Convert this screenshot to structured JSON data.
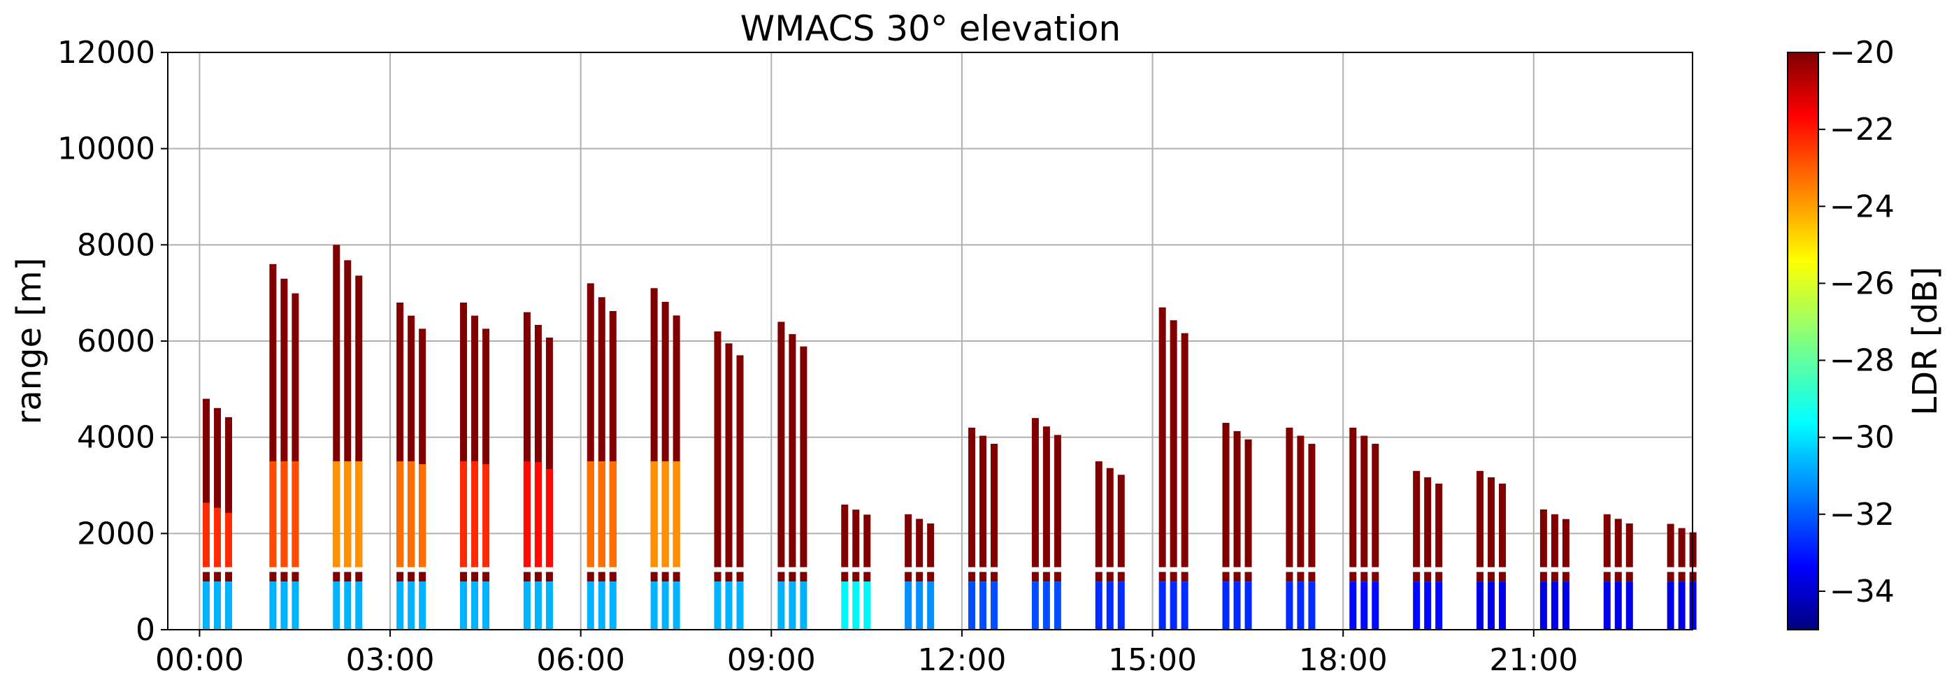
{
  "chart_data": {
    "type": "heatmap",
    "title": "WMACS 30° elevation",
    "ylabel": "range [m]",
    "xlabel": "",
    "x_ticks": [
      "00:00",
      "03:00",
      "06:00",
      "09:00",
      "12:00",
      "15:00",
      "18:00",
      "21:00"
    ],
    "x_tick_hours": [
      0,
      3,
      6,
      9,
      12,
      15,
      18,
      21
    ],
    "xlim_hours": [
      -0.5,
      23.5
    ],
    "y_ticks": [
      "0",
      "2000",
      "4000",
      "6000",
      "8000",
      "10000",
      "12000"
    ],
    "ylim": [
      0,
      12000
    ],
    "grid": true,
    "colorbar": {
      "label": "LDR [dB]",
      "range": [
        -35,
        -20
      ],
      "ticks": [
        "−20",
        "−22",
        "−24",
        "−26",
        "−28",
        "−30",
        "−32",
        "−34"
      ],
      "colormap": "jet"
    },
    "scans": [
      {
        "start_hour": 0.05,
        "top": 4800,
        "low_ldr": -30.5,
        "mid_ldr": -22.5
      },
      {
        "start_hour": 1.1,
        "top": 7600,
        "low_ldr": -30.5,
        "mid_ldr": -23
      },
      {
        "start_hour": 2.1,
        "top": 8000,
        "low_ldr": -30.5,
        "mid_ldr": -24
      },
      {
        "start_hour": 3.1,
        "top": 6800,
        "low_ldr": -30.5,
        "mid_ldr": -23.5
      },
      {
        "start_hour": 4.1,
        "top": 6800,
        "low_ldr": -30.5,
        "mid_ldr": -22.5
      },
      {
        "start_hour": 5.1,
        "top": 6600,
        "low_ldr": -30.5,
        "mid_ldr": -22
      },
      {
        "start_hour": 6.1,
        "top": 7200,
        "low_ldr": -30.5,
        "mid_ldr": -23.5
      },
      {
        "start_hour": 7.1,
        "top": 7100,
        "low_ldr": -30.5,
        "mid_ldr": -24
      },
      {
        "start_hour": 8.1,
        "top": 6200,
        "low_ldr": -30.5,
        "mid_ldr": -21
      },
      {
        "start_hour": 9.1,
        "top": 6400,
        "low_ldr": -30.5,
        "mid_ldr": -21
      },
      {
        "start_hour": 10.1,
        "top": 2600,
        "low_ldr": -29.5,
        "mid_ldr": -21
      },
      {
        "start_hour": 11.1,
        "top": 2400,
        "low_ldr": -31,
        "mid_ldr": -21
      },
      {
        "start_hour": 12.1,
        "top": 4200,
        "low_ldr": -32,
        "mid_ldr": -21
      },
      {
        "start_hour": 13.1,
        "top": 4400,
        "low_ldr": -32,
        "mid_ldr": -21
      },
      {
        "start_hour": 14.1,
        "top": 3500,
        "low_ldr": -32.5,
        "mid_ldr": -21
      },
      {
        "start_hour": 15.1,
        "top": 6700,
        "low_ldr": -32.5,
        "mid_ldr": -21
      },
      {
        "start_hour": 16.1,
        "top": 4300,
        "low_ldr": -32.5,
        "mid_ldr": -21
      },
      {
        "start_hour": 17.1,
        "top": 4200,
        "low_ldr": -32.5,
        "mid_ldr": -21
      },
      {
        "start_hour": 18.1,
        "top": 4200,
        "low_ldr": -33,
        "mid_ldr": -21
      },
      {
        "start_hour": 19.1,
        "top": 3300,
        "low_ldr": -33,
        "mid_ldr": -21
      },
      {
        "start_hour": 20.1,
        "top": 3300,
        "low_ldr": -33.5,
        "mid_ldr": -21
      },
      {
        "start_hour": 21.1,
        "top": 2500,
        "low_ldr": -33.5,
        "mid_ldr": -21
      },
      {
        "start_hour": 22.1,
        "top": 2400,
        "low_ldr": -33.5,
        "mid_ldr": -21
      },
      {
        "start_hour": 23.1,
        "top": 2200,
        "low_ldr": -33.5,
        "mid_ldr": -21
      }
    ]
  }
}
